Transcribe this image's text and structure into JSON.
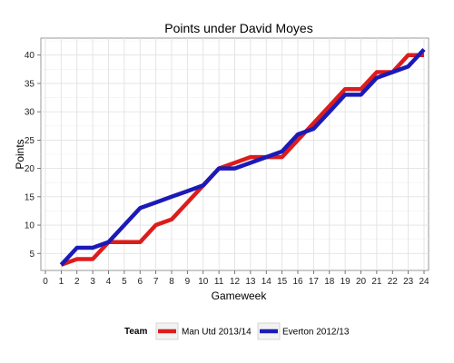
{
  "chart_data": {
    "type": "line",
    "title": "Points under David Moyes",
    "xlabel": "Gameweek",
    "ylabel": "Points",
    "xlim": [
      0,
      24
    ],
    "ylim": [
      2,
      43
    ],
    "xticks": [
      0,
      1,
      2,
      3,
      4,
      5,
      6,
      7,
      8,
      9,
      10,
      11,
      12,
      13,
      14,
      15,
      16,
      17,
      18,
      19,
      20,
      21,
      22,
      23,
      24
    ],
    "yticks": [
      5,
      10,
      15,
      20,
      25,
      30,
      35,
      40
    ],
    "grid": true,
    "legend": {
      "title": "Team",
      "placement": "bottom"
    },
    "x": [
      1,
      2,
      3,
      4,
      5,
      6,
      7,
      8,
      9,
      10,
      11,
      12,
      13,
      14,
      15,
      16,
      17,
      18,
      19,
      20,
      21,
      22,
      23,
      24
    ],
    "series": [
      {
        "name": "Man Utd 2013/14",
        "color": "#dd1c1c",
        "values": [
          3,
          4,
          4,
          7,
          7,
          7,
          10,
          11,
          14,
          17,
          20,
          21,
          22,
          22,
          22,
          25,
          28,
          31,
          34,
          34,
          37,
          37,
          40,
          40
        ]
      },
      {
        "name": "Everton 2012/13",
        "color": "#1b1ab8",
        "values": [
          3,
          6,
          6,
          7,
          10,
          13,
          14,
          15,
          16,
          17,
          20,
          20,
          21,
          22,
          23,
          26,
          27,
          30,
          33,
          33,
          36,
          37,
          38,
          41
        ]
      }
    ]
  }
}
